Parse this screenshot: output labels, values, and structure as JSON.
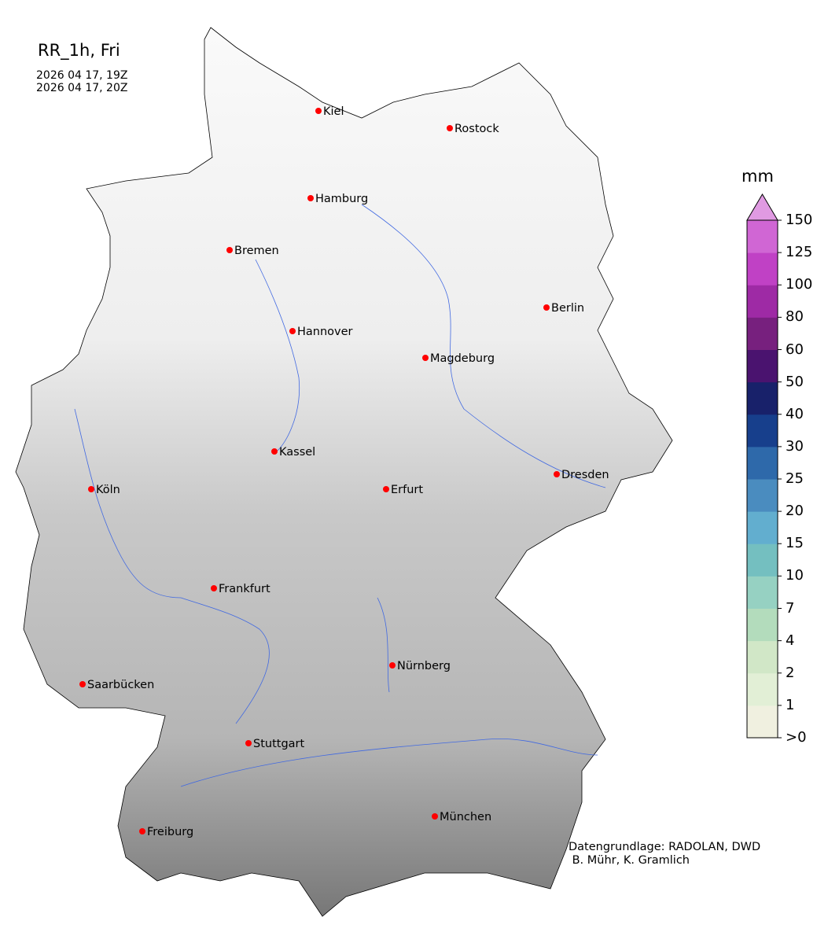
{
  "header": {
    "title": "RR_1h, Fri",
    "time_start": "2026 04 17, 19Z",
    "time_end": "2026 04 17, 20Z"
  },
  "map": {
    "region": "Germany",
    "marker_color": "#ff0000",
    "river_color": "#4169e1",
    "cities": [
      {
        "name": "Kiel"
      },
      {
        "name": "Rostock"
      },
      {
        "name": "Hamburg"
      },
      {
        "name": "Bremen"
      },
      {
        "name": "Berlin"
      },
      {
        "name": "Hannover"
      },
      {
        "name": "Magdeburg"
      },
      {
        "name": "Kassel"
      },
      {
        "name": "Köln"
      },
      {
        "name": "Erfurt"
      },
      {
        "name": "Dresden"
      },
      {
        "name": "Frankfurt"
      },
      {
        "name": "Nürnberg"
      },
      {
        "name": "Saarbücken"
      },
      {
        "name": "Stuttgart"
      },
      {
        "name": "Freiburg"
      },
      {
        "name": "München"
      }
    ]
  },
  "colorbar": {
    "unit": "mm",
    "labels": [
      ">0",
      "1",
      "2",
      "4",
      "7",
      "10",
      "15",
      "20",
      "25",
      "30",
      "40",
      "50",
      "60",
      "80",
      "100",
      "125",
      "150"
    ],
    "colors": [
      "#f0f0e0",
      "#e2efd6",
      "#d1e7c7",
      "#b3dcbc",
      "#96d1c2",
      "#74bfc0",
      "#62aecf",
      "#4a8cbf",
      "#2e69aa",
      "#173f8c",
      "#18216a",
      "#4a136f",
      "#77207e",
      "#9e2aa5",
      "#c041c5",
      "#d066d4"
    ],
    "extend_color": "#e09ae2"
  },
  "credit": {
    "line1": "Datengrundlage: RADOLAN, DWD",
    "line2": " B. Mühr, K. Gramlich"
  }
}
